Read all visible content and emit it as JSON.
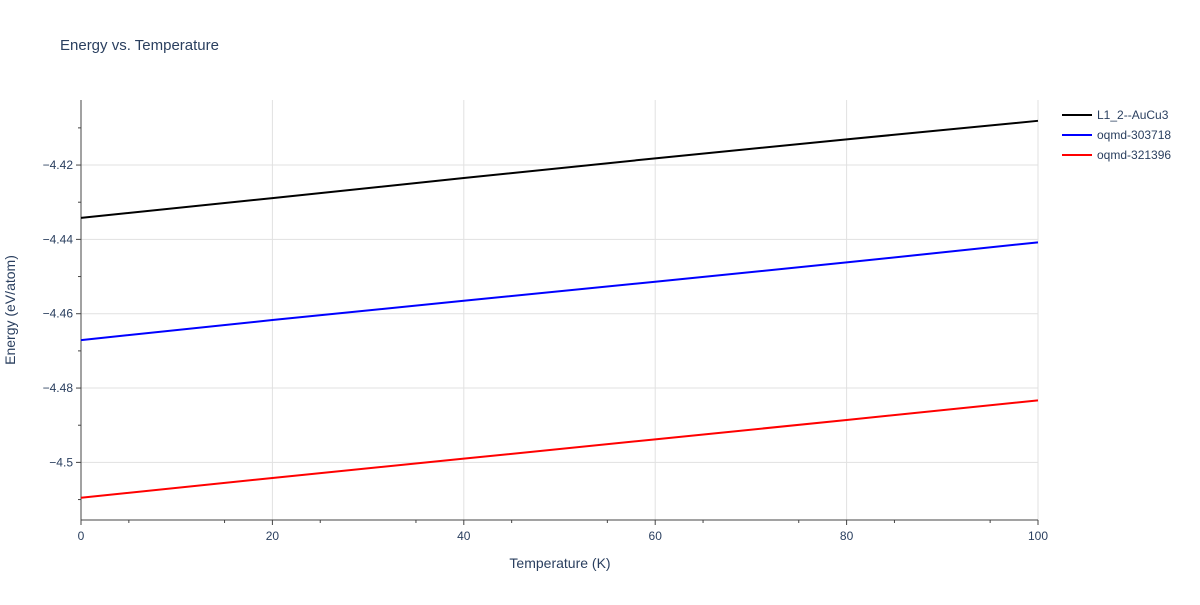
{
  "chart_data": {
    "type": "line",
    "title": "Energy vs. Temperature",
    "xlabel": "Temperature (K)",
    "ylabel": "Energy (eV/atom)",
    "xlim": [
      0,
      100
    ],
    "ylim": [
      -4.5155,
      -4.4025
    ],
    "x_ticks": [
      0,
      20,
      40,
      60,
      80,
      100
    ],
    "x_tick_labels": [
      "0",
      "20",
      "40",
      "60",
      "80",
      "100"
    ],
    "y_ticks": [
      -4.42,
      -4.44,
      -4.46,
      -4.48,
      -4.5
    ],
    "y_tick_labels": [
      "−4.42",
      "−4.44",
      "−4.46",
      "−4.48",
      "−4.5"
    ],
    "grid": true,
    "legend_position": "top-right",
    "series": [
      {
        "name": "L1_2--AuCu3",
        "color": "#000000",
        "x": [
          0,
          20,
          40,
          60,
          80,
          100
        ],
        "y": [
          -4.4342,
          -4.4289,
          -4.4235,
          -4.4182,
          -4.4131,
          -4.4081
        ]
      },
      {
        "name": "oqmd-303718",
        "color": "#0000ff",
        "x": [
          0,
          20,
          40,
          60,
          80,
          100
        ],
        "y": [
          -4.4671,
          -4.4617,
          -4.4565,
          -4.4514,
          -4.4462,
          -4.4408
        ]
      },
      {
        "name": "oqmd-321396",
        "color": "#ff0000",
        "x": [
          0,
          20,
          40,
          60,
          80,
          100
        ],
        "y": [
          -4.5095,
          -4.5042,
          -4.499,
          -4.4938,
          -4.4886,
          -4.4833
        ]
      }
    ]
  }
}
